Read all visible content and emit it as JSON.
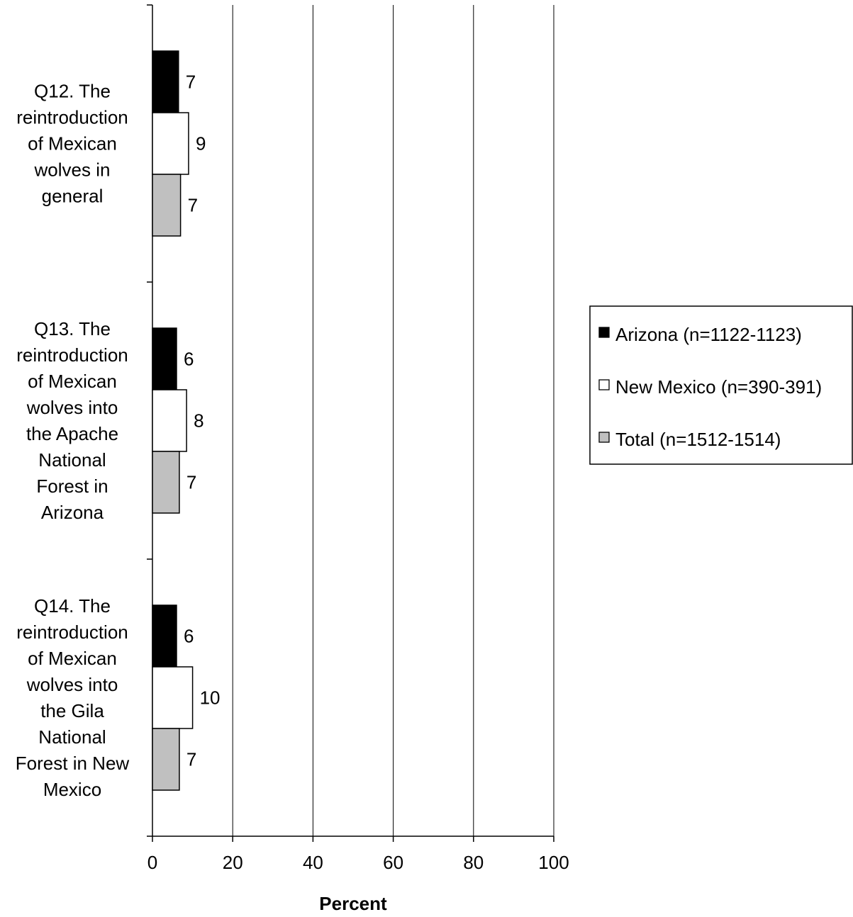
{
  "chart_data": {
    "type": "bar",
    "orientation": "horizontal",
    "categories": [
      "Q12. The reintroduction of Mexican wolves in general",
      "Q13. The reintroduction of Mexican wolves into the Apache National Forest in Arizona",
      "Q14. The reintroduction of Mexican wolves into the Gila National Forest in New Mexico"
    ],
    "category_lines": [
      [
        "Q12. The",
        "reintroduction",
        "of Mexican",
        "wolves in",
        "general"
      ],
      [
        "Q13. The",
        "reintroduction",
        "of Mexican",
        "wolves into",
        "the Apache",
        "National",
        "Forest in",
        "Arizona"
      ],
      [
        "Q14. The",
        "reintroduction",
        "of Mexican",
        "wolves into",
        "the Gila",
        "National",
        "Forest in New",
        "Mexico"
      ]
    ],
    "series": [
      {
        "name": "Arizona (n=1122-1123)",
        "color": "#000000",
        "values": [
          6.5,
          6,
          6
        ],
        "labels": [
          "7",
          "6",
          "6"
        ]
      },
      {
        "name": "New Mexico (n=390-391)",
        "color": "#ffffff",
        "values": [
          9,
          8.5,
          10
        ],
        "labels": [
          "9",
          "8",
          "10"
        ]
      },
      {
        "name": "Total (n=1512-1514)",
        "color": "#c0c0c0",
        "values": [
          7,
          6.7,
          6.7
        ],
        "labels": [
          "7",
          "7",
          "7"
        ]
      }
    ],
    "xlabel": "Percent",
    "xlim": [
      0,
      100
    ],
    "xticks": [
      0,
      20,
      40,
      60,
      80,
      100
    ],
    "xtick_labels": [
      "0",
      "20",
      "40",
      "60",
      "80",
      "100"
    ],
    "grid": "vertical",
    "legend_position": "right"
  }
}
